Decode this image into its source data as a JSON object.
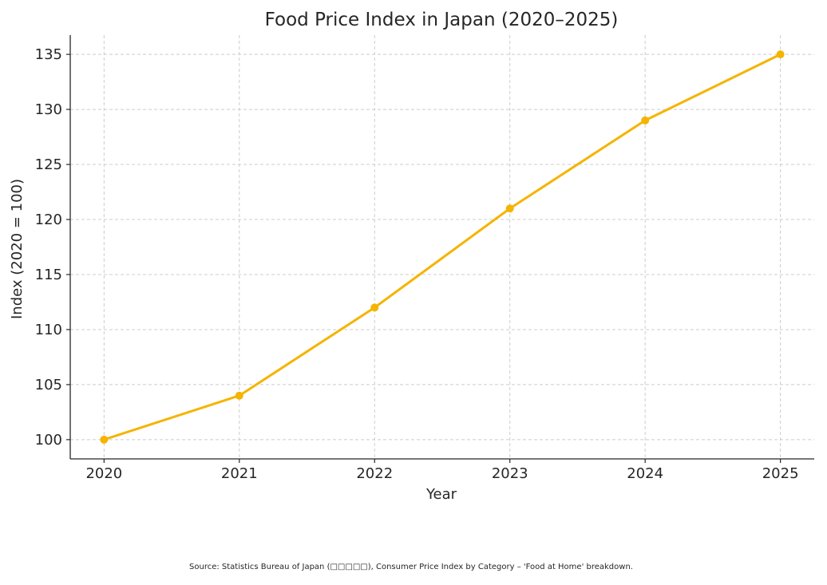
{
  "chart_data": {
    "type": "line",
    "title": "Food Price Index in Japan (2020–2025)",
    "xlabel": "Year",
    "ylabel": "Index (2020 = 100)",
    "categories": [
      "2020",
      "2021",
      "2022",
      "2023",
      "2024",
      "2025"
    ],
    "x": [
      2020,
      2021,
      2022,
      2023,
      2024,
      2025
    ],
    "series": [
      {
        "values": [
          100,
          104,
          112,
          121,
          129,
          135
        ],
        "color": "#f5b400"
      }
    ],
    "yticks": [
      "100",
      "105",
      "110",
      "115",
      "120",
      "125",
      "130",
      "135"
    ],
    "ylim": [
      98.25,
      136.75
    ],
    "xlim": [
      2019.75,
      2025.25
    ],
    "grid": true,
    "grid_style": "dashed",
    "marker": "circle"
  },
  "source_note": "Source: Statistics Bureau of Japan (□□□□□), Consumer Price Index by Category – 'Food at Home' breakdown."
}
